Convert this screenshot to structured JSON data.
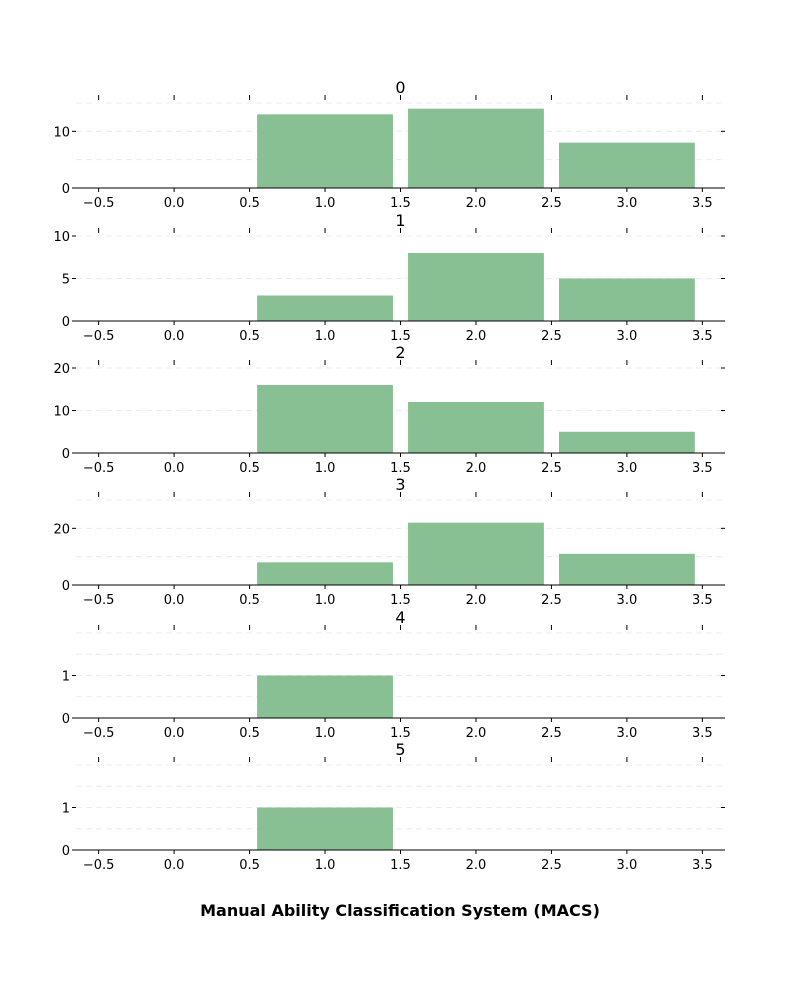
{
  "chart_data": {
    "type": "bar",
    "xlabel": "Manual Ability Classification System (MACS)",
    "xlim": [
      -0.65,
      3.65
    ],
    "xticks": [
      -0.5,
      0.0,
      0.5,
      1.0,
      1.5,
      2.0,
      2.5,
      3.0,
      3.5
    ],
    "xtick_labels": [
      "−0.5",
      "0.0",
      "0.5",
      "1.0",
      "1.5",
      "2.0",
      "2.5",
      "3.0",
      "3.5"
    ],
    "bar_color": "#88bf93",
    "bar_width": 0.9,
    "grid": "horizontal dashed",
    "panels": [
      {
        "title": "0",
        "x": [
          1,
          2,
          3
        ],
        "values": [
          13,
          14,
          8
        ],
        "ylim": [
          0,
          15
        ],
        "yticks": [
          0,
          10
        ],
        "grid_y": [
          5,
          10,
          15
        ]
      },
      {
        "title": "1",
        "x": [
          1,
          2,
          3
        ],
        "values": [
          3,
          8,
          5
        ],
        "ylim": [
          0,
          10
        ],
        "yticks": [
          0,
          5,
          10
        ],
        "grid_y": [
          5,
          10
        ]
      },
      {
        "title": "2",
        "x": [
          1,
          2,
          3
        ],
        "values": [
          16,
          12,
          5
        ],
        "ylim": [
          0,
          20
        ],
        "yticks": [
          0,
          10,
          20
        ],
        "grid_y": [
          10,
          20
        ]
      },
      {
        "title": "3",
        "x": [
          1,
          2,
          3
        ],
        "values": [
          8,
          22,
          11
        ],
        "ylim": [
          0,
          30
        ],
        "yticks": [
          0,
          20
        ],
        "grid_y": [
          10,
          20,
          30
        ]
      },
      {
        "title": "4",
        "x": [
          1
        ],
        "values": [
          1
        ],
        "ylim": [
          0,
          2
        ],
        "yticks": [
          0,
          1
        ],
        "grid_y": [
          0.5,
          1,
          1.5,
          2
        ]
      },
      {
        "title": "5",
        "x": [
          1
        ],
        "values": [
          1
        ],
        "ylim": [
          0,
          2
        ],
        "yticks": [
          0,
          1
        ],
        "grid_y": [
          0.5,
          1,
          1.5,
          2
        ]
      }
    ]
  }
}
